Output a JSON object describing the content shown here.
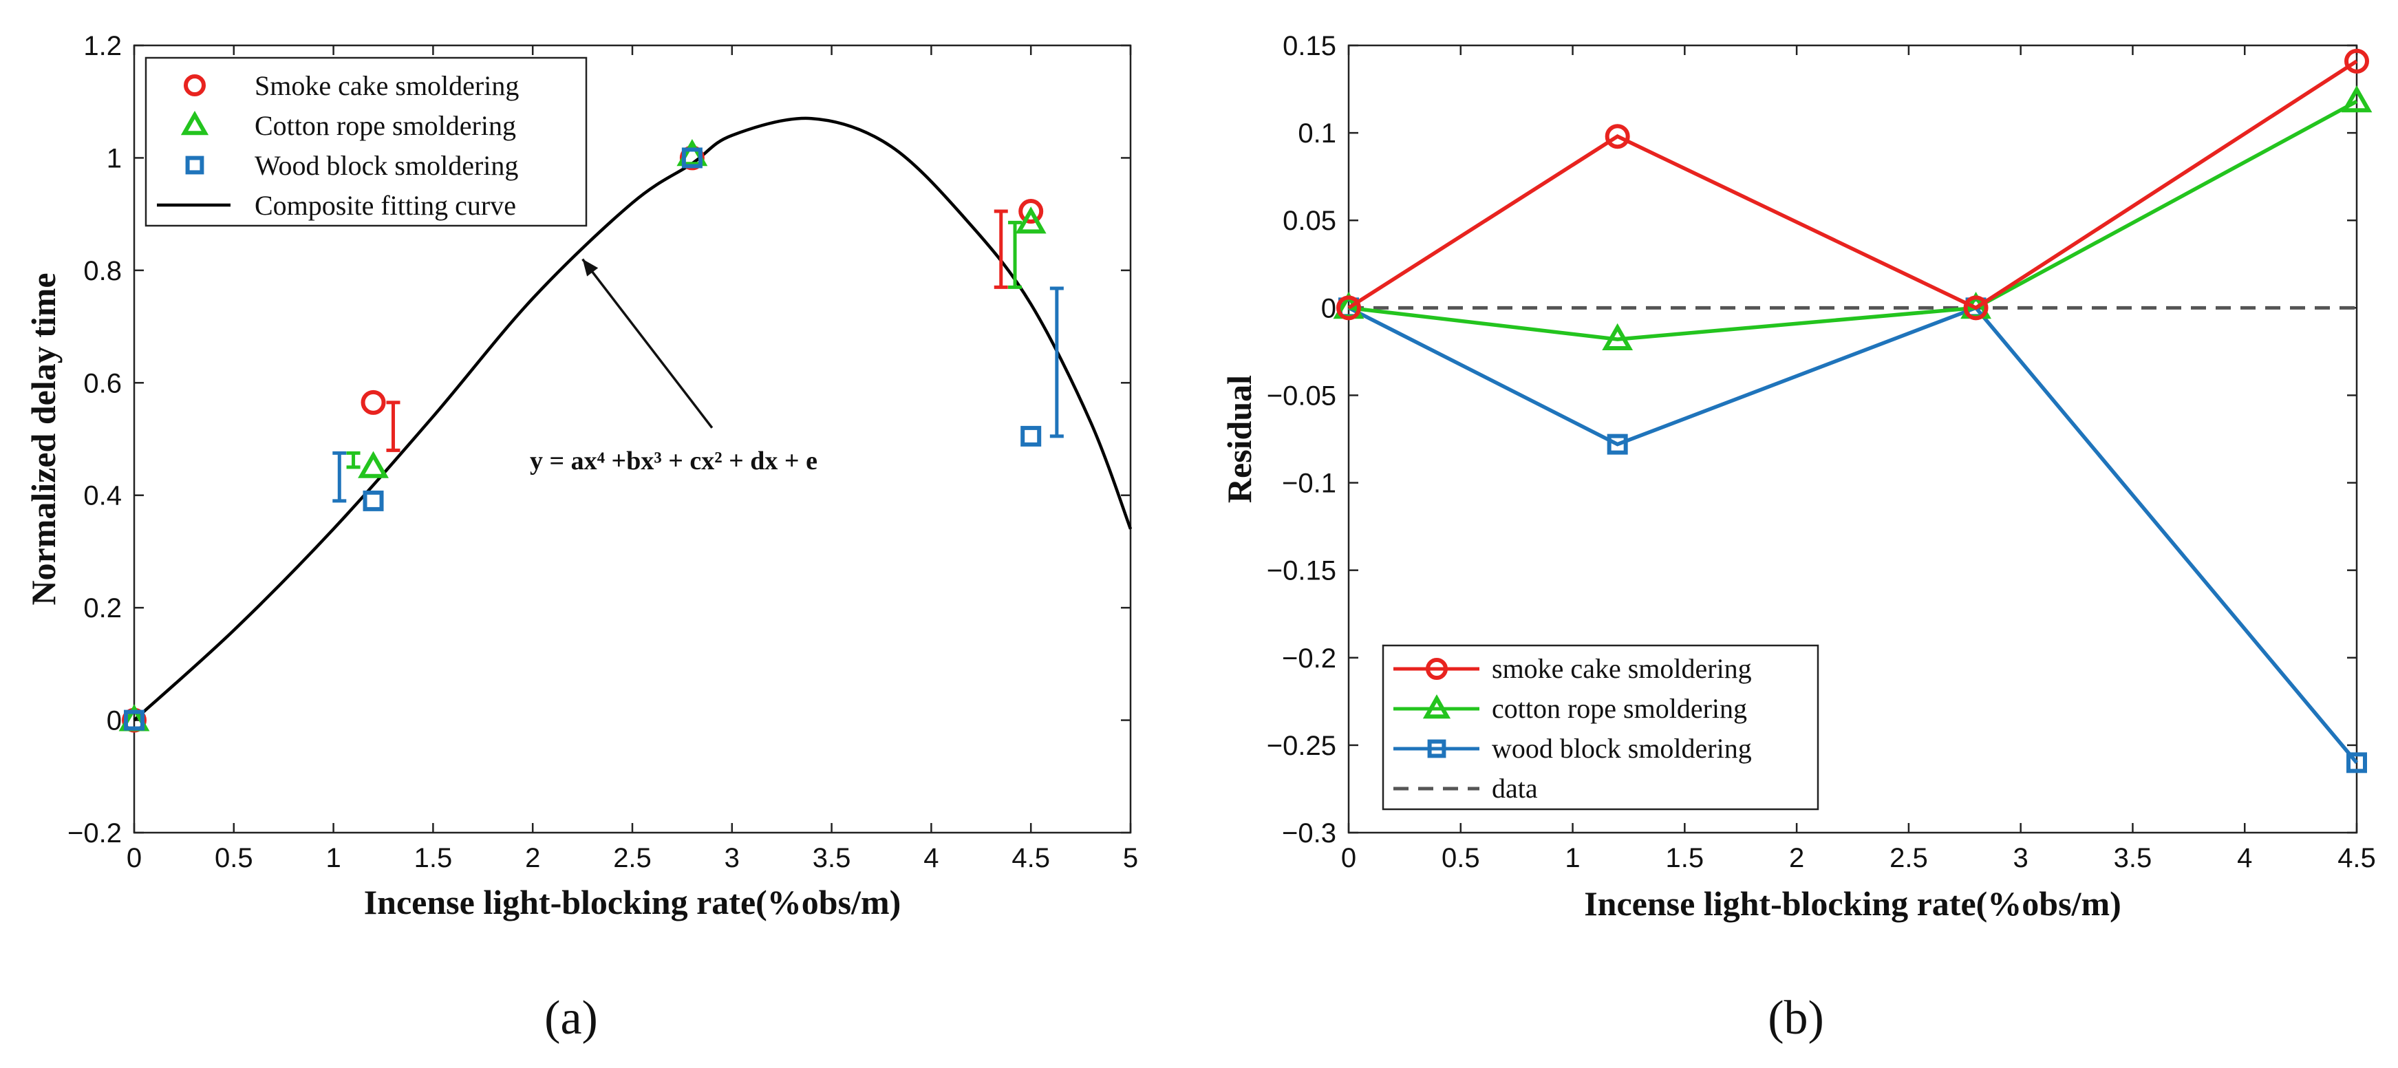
{
  "chart_data": [
    {
      "type": "scatter",
      "panel_label": "(a)",
      "xlabel": "Incense light-blocking rate(%obs/m)",
      "ylabel": "Normalized delay time",
      "xlim": [
        0,
        5
      ],
      "ylim": [
        -0.2,
        1.2
      ],
      "xticks": [
        "0",
        "0.5",
        "1",
        "1.5",
        "2",
        "2.5",
        "3",
        "3.5",
        "4",
        "4.5",
        "5"
      ],
      "yticks": [
        "−0.2",
        "0",
        "0.2",
        "0.4",
        "0.6",
        "0.8",
        "1",
        "1.2"
      ],
      "legend_position": "top-left",
      "series": [
        {
          "name": "Smoke cake smoldering",
          "color": "#e8231f",
          "marker": "circle",
          "x": [
            0,
            1.2,
            2.8,
            4.5
          ],
          "y": [
            0,
            0.565,
            1.0,
            0.905
          ],
          "errorbars": [
            {
              "x": 1.3,
              "low": 0.48,
              "high": 0.565
            },
            {
              "x": 4.35,
              "low": 0.77,
              "high": 0.905
            }
          ]
        },
        {
          "name": "Cotton rope smoldering",
          "color": "#23c41e",
          "marker": "triangle",
          "x": [
            0,
            1.2,
            2.8,
            4.5
          ],
          "y": [
            0,
            0.45,
            1.005,
            0.885
          ],
          "errorbars": [
            {
              "x": 1.1,
              "low": 0.45,
              "high": 0.475
            },
            {
              "x": 4.42,
              "low": 0.77,
              "high": 0.885
            }
          ]
        },
        {
          "name": "Wood block smoldering",
          "color": "#1f74bb",
          "marker": "square",
          "x": [
            0,
            1.2,
            2.8,
            4.5
          ],
          "y": [
            0,
            0.39,
            1.0,
            0.505
          ],
          "errorbars": [
            {
              "x": 1.03,
              "low": 0.39,
              "high": 0.475
            },
            {
              "x": 4.63,
              "low": 0.505,
              "high": 0.768
            }
          ]
        },
        {
          "name": "Composite fitting curve",
          "color": "#000000",
          "marker": "none",
          "curve_x": [
            0,
            0.5,
            1.0,
            1.5,
            2.0,
            2.5,
            2.8,
            3.0,
            3.4,
            3.8,
            4.2,
            4.5,
            4.8,
            5.0
          ],
          "curve_y": [
            0,
            0.16,
            0.34,
            0.54,
            0.75,
            0.92,
            0.99,
            1.04,
            1.07,
            1.02,
            0.88,
            0.74,
            0.53,
            0.34
          ]
        }
      ],
      "annotation": {
        "text": "y = ax⁴ +bx³ + cx² + dx + e",
        "arrow_to": [
          2.25,
          0.82
        ],
        "arrow_from": [
          2.9,
          0.52
        ]
      }
    },
    {
      "type": "line",
      "panel_label": "(b)",
      "xlabel": "Incense light-blocking rate(%obs/m)",
      "ylabel": "Residual",
      "xlim": [
        0,
        4.5
      ],
      "ylim": [
        -0.3,
        0.15
      ],
      "xticks": [
        "0",
        "0.5",
        "1",
        "1.5",
        "2",
        "2.5",
        "3",
        "3.5",
        "4",
        "4.5"
      ],
      "yticks": [
        "−0.3",
        "−0.25",
        "−0.2",
        "−0.15",
        "−0.1",
        "−0.05",
        "0",
        "0.05",
        "0.1",
        "0.15"
      ],
      "legend_position": "bottom-left",
      "x": [
        0,
        1.2,
        2.8,
        4.5
      ],
      "series": [
        {
          "name": "smoke cake smoldering",
          "color": "#e8231f",
          "marker": "circle",
          "values": [
            0,
            0.098,
            0,
            0.141
          ]
        },
        {
          "name": "cotton rope smoldering",
          "color": "#23c41e",
          "marker": "triangle",
          "values": [
            0,
            -0.018,
            0,
            0.118
          ]
        },
        {
          "name": "wood block smoldering",
          "color": "#1f74bb",
          "marker": "square",
          "values": [
            0,
            -0.078,
            0,
            -0.26
          ]
        },
        {
          "name": "data",
          "color": "#555555",
          "marker": "none",
          "dashed": true,
          "values": [
            0,
            0,
            0,
            0
          ]
        }
      ]
    }
  ]
}
